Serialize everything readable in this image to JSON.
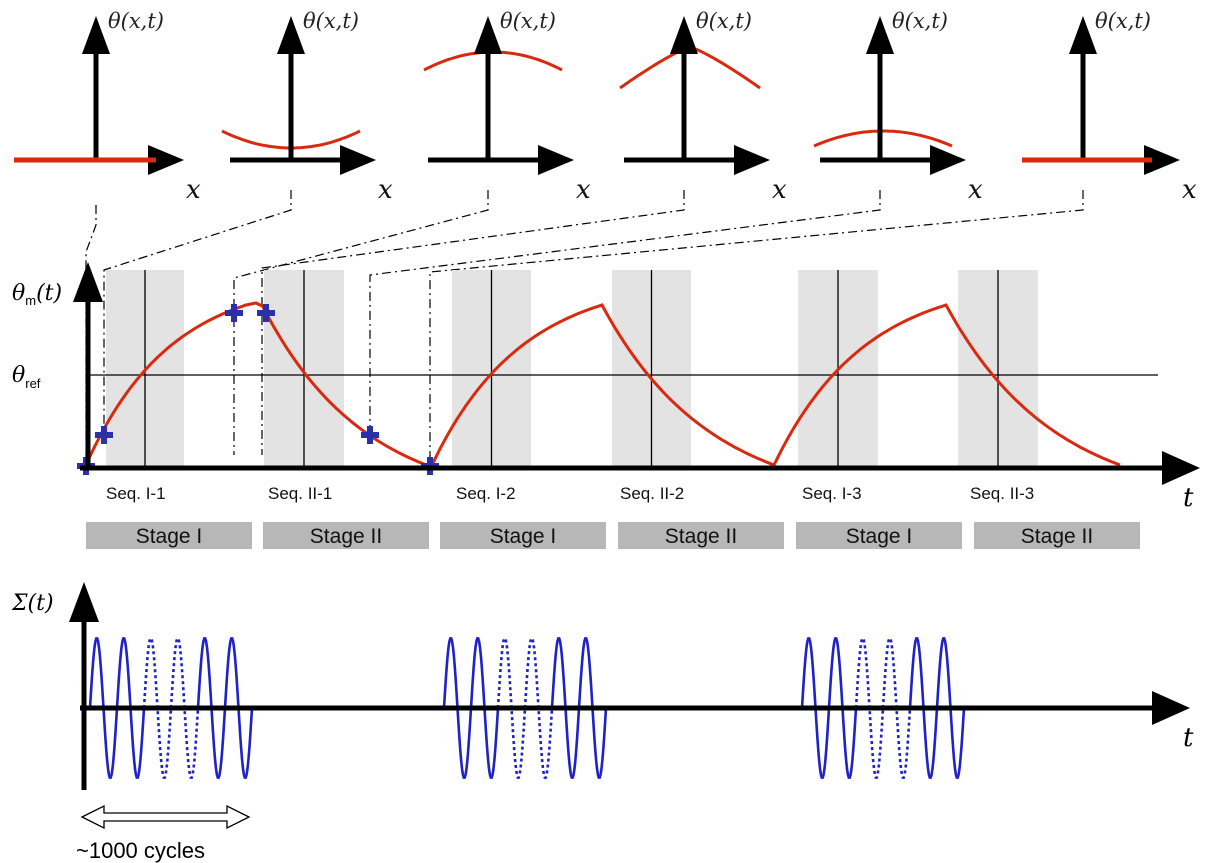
{
  "colors": {
    "axis": "#000000",
    "curve": "#d92a10",
    "oscillation": "#1e22c8",
    "marker": "#2b2fa8",
    "band": "#e3e3e3",
    "stage_box": "#b7b7b7"
  },
  "profiles": [
    {
      "theta_label": "θ(x,t)",
      "x_label": "x",
      "shape": "flat"
    },
    {
      "theta_label": "θ(x,t)",
      "x_label": "x",
      "shape": "trough"
    },
    {
      "theta_label": "θ(x,t)",
      "x_label": "x",
      "shape": "broad-peak"
    },
    {
      "theta_label": "θ(x,t)",
      "x_label": "x",
      "shape": "sharp-peak"
    },
    {
      "theta_label": "θ(x,t)",
      "x_label": "x",
      "shape": "small-peak"
    },
    {
      "theta_label": "θ(x,t)",
      "x_label": "x",
      "shape": "flat"
    }
  ],
  "middle_plot": {
    "y_label_main": "θ",
    "y_label_sub": "m",
    "y_label_arg": "(t)",
    "ref_label_main": "θ",
    "ref_label_sub": "ref",
    "t_label": "t",
    "sequences": [
      "Seq. I-1",
      "Seq. II-1",
      "Seq. I-2",
      "Seq. II-2",
      "Seq. I-3",
      "Seq. II-3"
    ],
    "stages": [
      "Stage I",
      "Stage II",
      "Stage I",
      "Stage II",
      "Stage I",
      "Stage II"
    ]
  },
  "bottom_plot": {
    "y_label": "Σ(t)",
    "t_label": "t",
    "cycles_label": "~1000 cycles"
  }
}
